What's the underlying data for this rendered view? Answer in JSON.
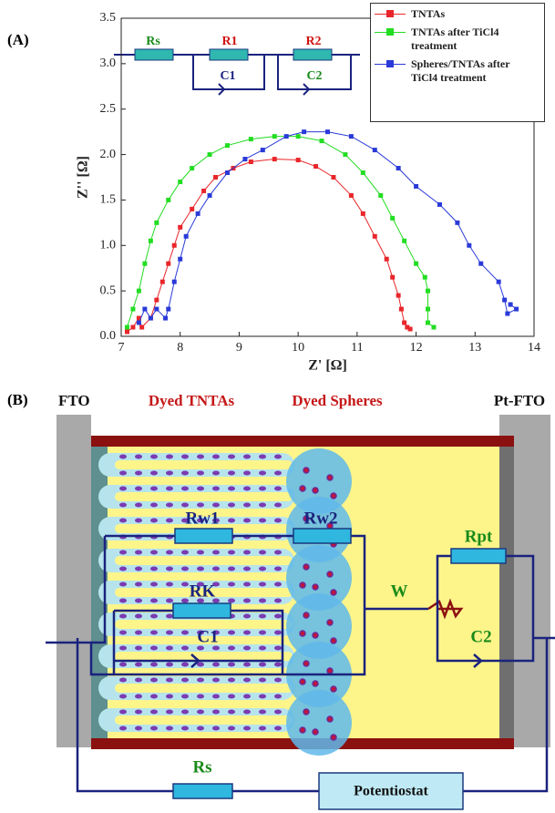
{
  "panel_labels": [
    "(A)",
    "(B)"
  ],
  "chart_data": {
    "type": "line",
    "x_label": "Z' [Ω]",
    "y_label": "Z'' [Ω]",
    "xlim": [
      7,
      14
    ],
    "xticks": [
      7,
      8,
      9,
      10,
      11,
      12,
      13,
      14
    ],
    "ylim": [
      0,
      3.5
    ],
    "yticks": [
      {
        "value": 0,
        "label": "0.0"
      },
      0.5,
      {
        "value": 1,
        "label": "1.0"
      },
      1.5,
      {
        "value": 2,
        "label": "2.0"
      },
      2.5,
      {
        "value": 3,
        "label": "3.0"
      },
      3.5
    ],
    "legend": "upper right",
    "series": [
      {
        "name": "TNTAs",
        "color": "#e8262a",
        "x": [
          7.1,
          7.2,
          7.3,
          7.35,
          7.5,
          7.6,
          7.7,
          7.8,
          7.9,
          8.0,
          8.2,
          8.4,
          8.6,
          8.9,
          9.2,
          9.6,
          10.0,
          10.3,
          10.6,
          10.9,
          11.1,
          11.3,
          11.5,
          11.6,
          11.7,
          11.75,
          11.8,
          11.85,
          11.9
        ],
        "values": [
          0.05,
          0.1,
          0.2,
          0.1,
          0.2,
          0.4,
          0.6,
          0.8,
          1.0,
          1.2,
          1.4,
          1.6,
          1.75,
          1.85,
          1.92,
          1.95,
          1.94,
          1.87,
          1.75,
          1.55,
          1.35,
          1.1,
          0.85,
          0.65,
          0.45,
          0.3,
          0.15,
          0.1,
          0.08
        ]
      },
      {
        "name": "TNTAs after TiCl4 treatment",
        "color": "#22dd22",
        "x": [
          7.1,
          7.2,
          7.3,
          7.4,
          7.5,
          7.6,
          7.8,
          8.0,
          8.2,
          8.5,
          8.8,
          9.2,
          9.6,
          10.0,
          10.4,
          10.8,
          11.1,
          11.4,
          11.6,
          11.8,
          12.0,
          12.15,
          12.2,
          12.2,
          12.2,
          12.3
        ],
        "values": [
          0.1,
          0.3,
          0.5,
          0.8,
          1.05,
          1.25,
          1.5,
          1.7,
          1.85,
          2.0,
          2.1,
          2.17,
          2.2,
          2.2,
          2.15,
          2.0,
          1.8,
          1.55,
          1.3,
          1.05,
          0.8,
          0.65,
          0.5,
          0.3,
          0.15,
          0.1
        ]
      },
      {
        "name": "Spheres/TNTAs after TiCl4 treatment",
        "color": "#2a3ad8",
        "x": [
          7.3,
          7.4,
          7.5,
          7.6,
          7.75,
          7.8,
          7.9,
          8.0,
          8.1,
          8.3,
          8.5,
          8.8,
          9.1,
          9.4,
          9.8,
          10.1,
          10.5,
          10.9,
          11.3,
          11.7,
          12.0,
          12.4,
          12.7,
          12.9,
          13.1,
          13.4,
          13.5,
          13.55,
          13.7,
          13.6
        ],
        "values": [
          0.15,
          0.3,
          0.2,
          0.3,
          0.2,
          0.3,
          0.6,
          0.85,
          1.1,
          1.35,
          1.55,
          1.8,
          1.95,
          2.05,
          2.2,
          2.25,
          2.25,
          2.2,
          2.05,
          1.85,
          1.65,
          1.45,
          1.25,
          1.0,
          0.8,
          0.6,
          0.4,
          0.25,
          0.3,
          0.35
        ]
      }
    ]
  },
  "inset_circuit": {
    "rs": "Rs",
    "r1": "R1",
    "r2": "R2",
    "c1": "C1",
    "c2": "C2"
  },
  "diagram": {
    "electrode_left": "FTO",
    "layer_tubes": "Dyed TNTAs",
    "layer_spheres": "Dyed Spheres",
    "electrode_right": "Pt-FTO",
    "rw1": "Rw1",
    "rw2": "Rw2",
    "rk": "RK",
    "c1": "C1",
    "w": "W",
    "rpt": "Rpt",
    "c2": "C2",
    "rs": "Rs",
    "potentiostat": "Potentiostat"
  }
}
